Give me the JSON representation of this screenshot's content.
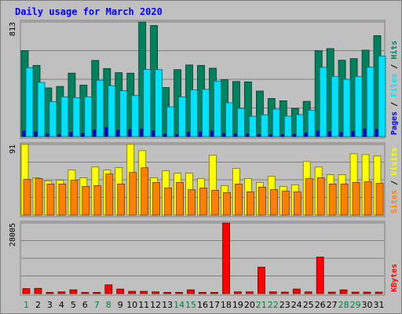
{
  "chart_data": {
    "type": "bar",
    "title": "Daily usage for March 2020",
    "days": [
      1,
      2,
      3,
      4,
      5,
      6,
      7,
      8,
      9,
      10,
      11,
      12,
      13,
      14,
      15,
      16,
      17,
      18,
      19,
      20,
      21,
      22,
      23,
      24,
      25,
      26,
      27,
      28,
      29,
      30,
      31
    ],
    "weekend_days": [
      1,
      7,
      8,
      14,
      15,
      21,
      22,
      28,
      29
    ],
    "panels": [
      {
        "id": "top",
        "ymax": 813,
        "axis_label": "813",
        "series": [
          {
            "name": "Hits",
            "color": "#00805c",
            "values": [
              610,
              505,
              345,
              356,
              450,
              365,
              540,
              483,
              453,
              450,
              813,
              788,
              348,
              475,
              508,
              505,
              485,
              403,
              391,
              388,
              323,
              270,
              254,
              200,
              250,
              609,
              624,
              542,
              553,
              613,
              716
            ]
          },
          {
            "name": "Files",
            "color": "#00e0ff",
            "values": [
              489,
              384,
              248,
              282,
              276,
              281,
              400,
              361,
              325,
              291,
              476,
              475,
              211,
              281,
              331,
              335,
              393,
              240,
              200,
              144,
              155,
              195,
              145,
              156,
              187,
              491,
              427,
              406,
              426,
              493,
              570
            ]
          },
          {
            "name": "Pages",
            "color": "#0000ff",
            "values": [
              39,
              32,
              18,
              15,
              30,
              23,
              48,
              64,
              45,
              50,
              53,
              40,
              17,
              15,
              30,
              35,
              39,
              22,
              18,
              18,
              15,
              15,
              14,
              16,
              26,
              40,
              36,
              30,
              36,
              54,
              50
            ]
          }
        ]
      },
      {
        "id": "mid",
        "ymax": 91,
        "axis_label": "91",
        "series": [
          {
            "name": "Visits",
            "color": "#ffff00",
            "values": [
              91,
              48,
              44,
              45,
              58,
              48,
              62,
              58,
              61,
              91,
              83,
              48,
              57,
              54,
              54,
              47,
              77,
              38,
              60,
              47,
              42,
              50,
              37,
              39,
              69,
              62,
              52,
              52,
              79,
              78,
              76
            ]
          },
          {
            "name": "Sites",
            "color": "#ff8000",
            "values": [
              46,
              47,
              40,
              40,
              45,
              37,
              38,
              53,
              40,
              55,
              61,
              42,
              35,
              42,
              33,
              35,
              32,
              29,
              40,
              30,
              36,
              33,
              31,
              30,
              47,
              48,
              40,
              40,
              42,
              43,
              41
            ]
          }
        ]
      },
      {
        "id": "bot",
        "ymax": 28005,
        "axis_label": "28005",
        "series": [
          {
            "name": "KBytes",
            "color": "#ff0000",
            "values": [
              2000,
              2100,
              500,
              700,
              1500,
              500,
              500,
              3500,
              1800,
              900,
              900,
              700,
              500,
              500,
              1500,
              500,
              500,
              28005,
              700,
              700,
              10500,
              700,
              600,
              1800,
              700,
              14500,
              600,
              1500,
              600,
              600,
              600
            ]
          }
        ]
      }
    ]
  }
}
